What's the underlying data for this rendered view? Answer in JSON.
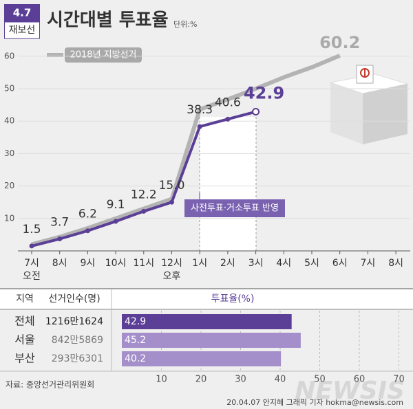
{
  "badge": {
    "top": "4.7",
    "bottom": "재보선"
  },
  "chart_data": [
    {
      "type": "line",
      "title": "시간대별 투표율",
      "unit": "단위:%",
      "categories": [
        "7시",
        "8시",
        "9시",
        "10시",
        "11시",
        "12시",
        "1시",
        "2시",
        "3시",
        "4시",
        "5시",
        "6시",
        "7시",
        "8시"
      ],
      "category_sublabels": [
        "오전",
        null,
        null,
        null,
        null,
        "오후",
        null,
        null,
        null,
        null,
        null,
        null,
        null,
        null
      ],
      "series": [
        {
          "name": "2018년 지방선거",
          "color": "#b3b3b3",
          "values": [
            2.0,
            4.3,
            7.0,
            10.0,
            13.0,
            16.0,
            43.6,
            46.7,
            50.0,
            53.5,
            56.6,
            60.2,
            null,
            null
          ],
          "value_labels": [
            null,
            null,
            null,
            null,
            null,
            null,
            null,
            null,
            null,
            null,
            null,
            "60.2",
            null,
            null
          ]
        },
        {
          "color": "#5b3f96",
          "values": [
            1.5,
            3.7,
            6.2,
            9.1,
            12.2,
            15.0,
            38.3,
            40.6,
            42.9,
            null,
            null,
            null,
            null,
            null
          ],
          "value_labels": [
            "1.5",
            "3.7",
            "6.2",
            "9.1",
            "12.2",
            "15.0",
            "38.3",
            "40.6",
            "42.9",
            null,
            null,
            null,
            null,
            null
          ]
        }
      ],
      "ylim": [
        0,
        75
      ],
      "yticks": [
        10,
        20,
        30,
        40,
        50,
        60
      ],
      "grid": true,
      "annotation": "사전투표·거소투표 반영"
    },
    {
      "type": "hbar",
      "headers": [
        "지역",
        "선거인수(명)",
        "투표율(%)"
      ],
      "categories": [
        "전체",
        "서울",
        "부산"
      ],
      "electors": [
        "1216만1624",
        "842만5869",
        "293만6301"
      ],
      "values": [
        42.9,
        45.2,
        40.2
      ],
      "colors": [
        "#5b3f96",
        "#a48fcb",
        "#a48fcb"
      ],
      "xlim": [
        0,
        73
      ],
      "xticks": [
        10,
        20,
        30,
        40,
        50,
        60,
        70
      ]
    }
  ],
  "footer": {
    "source": "자료: 중앙선거관리위원회",
    "credit": "20.04.07 안지혜 그래픽 기자 hokma@newsis.com",
    "watermark": "NEWSIS"
  }
}
